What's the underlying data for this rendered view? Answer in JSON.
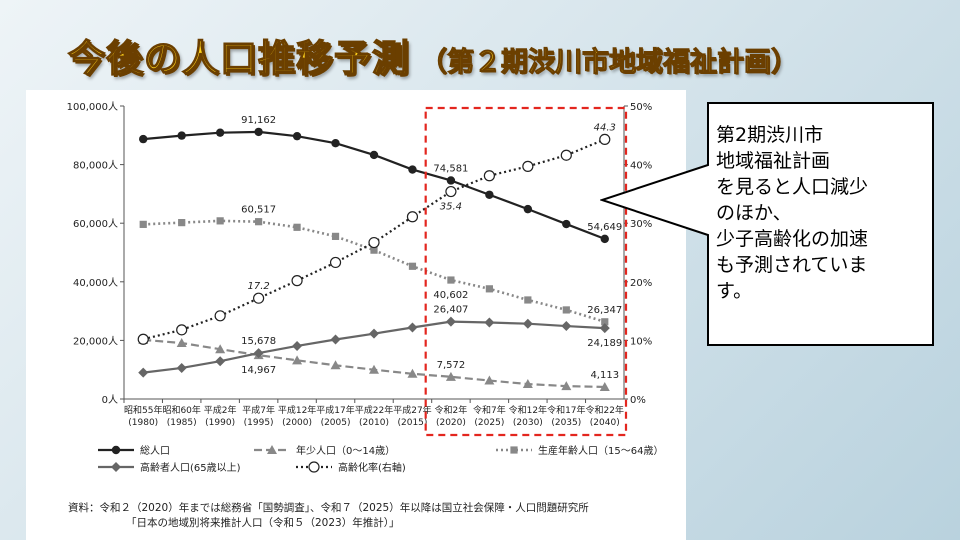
{
  "slide": {
    "title_main": "今後の人口推移予測",
    "title_sub": "（第２期渋川市地域福祉計画）"
  },
  "callout": {
    "lines": [
      "第2期渋川市",
      "地域福祉計画",
      "を見ると人口減少",
      "のほか、",
      "少子高齢化の加速",
      "も予測されていま",
      "す。"
    ]
  },
  "source_note": {
    "line1": "資料：令和２（2020）年までは総務省「国勢調査」、令和７（2025）年以降は国立社会保障・人口問題研究所",
    "line2": "「日本の地域別将来推計人口（令和５（2023）年推計）」"
  },
  "colors": {
    "highlight_box": "#e3261f",
    "series_line": "#333333",
    "series_gray": "#888888"
  },
  "chart_data": {
    "type": "line",
    "categories": [
      [
        "昭和55年",
        "(1980)"
      ],
      [
        "昭和60年",
        "(1985)"
      ],
      [
        "平成2年",
        "(1990)"
      ],
      [
        "平成7年",
        "(1995)"
      ],
      [
        "平成12年",
        "(2000)"
      ],
      [
        "平成17年",
        "(2005)"
      ],
      [
        "平成22年",
        "(2010)"
      ],
      [
        "平成27年",
        "(2015)"
      ],
      [
        "令和2年",
        "(2020)"
      ],
      [
        "令和7年",
        "(2025)"
      ],
      [
        "令和12年",
        "(2030)"
      ],
      [
        "令和17年",
        "(2035)"
      ],
      [
        "令和22年",
        "(2040)"
      ]
    ],
    "y_left": {
      "min": 0,
      "max": 100000,
      "ticks": [
        "0人",
        "20,000人",
        "40,000人",
        "60,000人",
        "80,000人",
        "100,000人"
      ]
    },
    "y_right": {
      "min": 0,
      "max": 50,
      "ticks": [
        "0%",
        "10%",
        "20%",
        "30%",
        "40%",
        "50%"
      ]
    },
    "series": [
      {
        "name": "総人口",
        "axis": "left",
        "style": "solid",
        "marker": "circle",
        "values": [
          88700,
          89900,
          90900,
          91162,
          89700,
          87300,
          83300,
          78300,
          74581,
          69700,
          64800,
          59700,
          54649
        ]
      },
      {
        "name": "年少人口（0～14歳）",
        "axis": "left",
        "style": "dashed",
        "marker": "triangle",
        "values": [
          20200,
          19100,
          17000,
          14967,
          13200,
          11500,
          10000,
          8600,
          7572,
          6300,
          5100,
          4400,
          4113
        ]
      },
      {
        "name": "生産年齢人口（15～64歳）",
        "axis": "left",
        "style": "dotted-gray",
        "marker": "square",
        "values": [
          59600,
          60200,
          60800,
          60517,
          58600,
          55500,
          50800,
          45300,
          40602,
          37600,
          33800,
          30400,
          26347
        ]
      },
      {
        "name": "高齢者人口(65歳以上)",
        "axis": "left",
        "style": "solid-gray",
        "marker": "diamond",
        "values": [
          9000,
          10600,
          12900,
          15678,
          18100,
          20300,
          22300,
          24400,
          26407,
          26100,
          25700,
          24900,
          24189
        ]
      },
      {
        "name": "高齢化率(右軸)",
        "axis": "right",
        "style": "dotted",
        "marker": "open-circle",
        "values": [
          10.2,
          11.8,
          14.2,
          17.2,
          20.2,
          23.3,
          26.7,
          31.1,
          35.4,
          38.1,
          39.7,
          41.6,
          44.3
        ]
      }
    ],
    "data_labels": [
      {
        "series": 0,
        "index": 3,
        "text": "91,162",
        "pos": "above"
      },
      {
        "series": 0,
        "index": 8,
        "text": "74,581",
        "pos": "above"
      },
      {
        "series": 0,
        "index": 12,
        "text": "54,649",
        "pos": "above"
      },
      {
        "series": 2,
        "index": 3,
        "text": "60,517",
        "pos": "above"
      },
      {
        "series": 2,
        "index": 8,
        "text": "40,602",
        "pos": "below"
      },
      {
        "series": 2,
        "index": 12,
        "text": "26,347",
        "pos": "above"
      },
      {
        "series": 3,
        "index": 3,
        "text": "15,678",
        "pos": "above"
      },
      {
        "series": 3,
        "index": 8,
        "text": "26,407",
        "pos": "above"
      },
      {
        "series": 3,
        "index": 12,
        "text": "24,189",
        "pos": "below"
      },
      {
        "series": 1,
        "index": 3,
        "text": "14,967",
        "pos": "below"
      },
      {
        "series": 1,
        "index": 8,
        "text": "7,572",
        "pos": "above"
      },
      {
        "series": 1,
        "index": 12,
        "text": "4,113",
        "pos": "above"
      },
      {
        "series": 4,
        "index": 3,
        "text": "17.2",
        "pos": "above",
        "italic": true
      },
      {
        "series": 4,
        "index": 8,
        "text": "35.4",
        "pos": "below",
        "italic": true
      },
      {
        "series": 4,
        "index": 12,
        "text": "44.3",
        "pos": "above",
        "italic": true
      }
    ],
    "highlight": {
      "from_index": 8,
      "to_index": 12
    },
    "legend_placement": "bottom",
    "grid": false
  }
}
